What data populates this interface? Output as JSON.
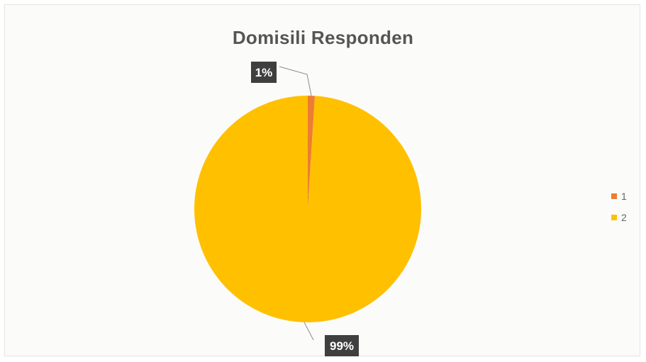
{
  "chart_data": {
    "type": "pie",
    "title": "Domisili Responden",
    "categories": [
      "1",
      "2"
    ],
    "values": [
      1,
      99
    ],
    "data_labels": [
      "1%",
      "99%"
    ],
    "colors": [
      "#ed7d31",
      "#ffc000"
    ],
    "legend_position": "right"
  }
}
